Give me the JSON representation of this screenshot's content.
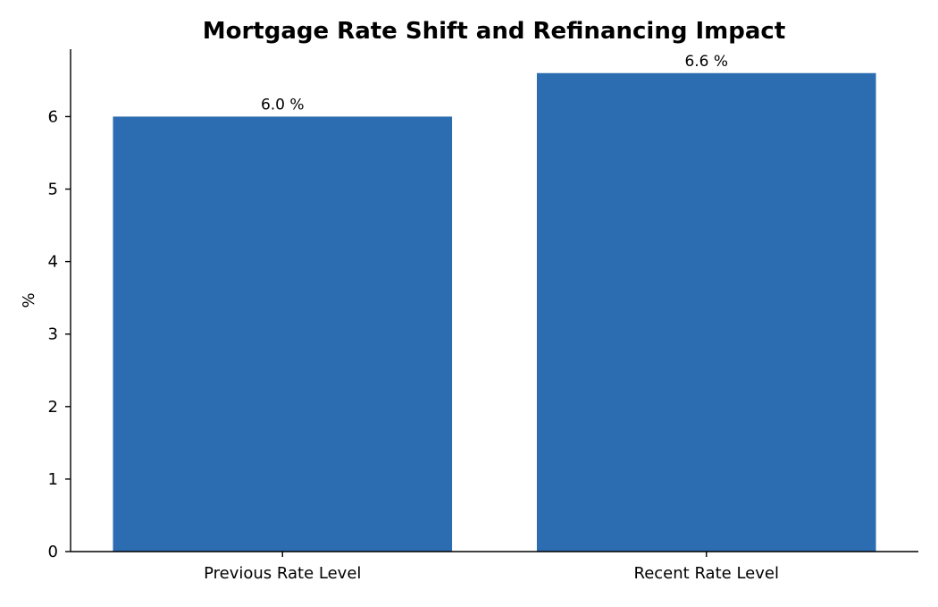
{
  "chart_data": {
    "type": "bar",
    "title": "Mortgage Rate Shift and Refinancing Impact",
    "xlabel": "",
    "ylabel": "%",
    "categories": [
      "Previous Rate Level",
      "Recent Rate Level"
    ],
    "values": [
      6.0,
      6.6
    ],
    "data_labels": [
      "6.0 %",
      "6.6 %"
    ],
    "ylim": [
      0,
      6.93
    ],
    "yticks": [
      0,
      1,
      2,
      3,
      4,
      5,
      6
    ],
    "ytick_labels": [
      "0",
      "1",
      "2",
      "3",
      "4",
      "5",
      "6"
    ],
    "grid": false,
    "legend": "none",
    "bar_color": "#2c6cb0",
    "axis_color": "#000000"
  }
}
